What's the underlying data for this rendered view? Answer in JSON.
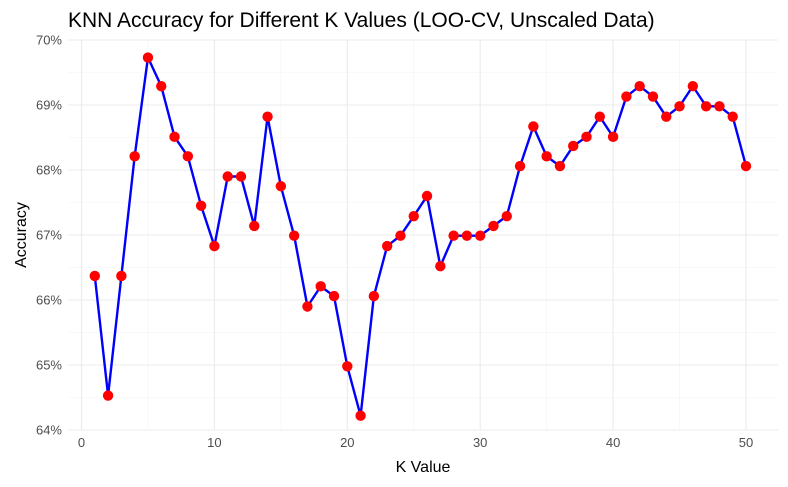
{
  "chart_data": {
    "type": "line",
    "title": "KNN Accuracy for Different K Values (LOO-CV, Unscaled Data)",
    "xlabel": "K Value",
    "ylabel": "Accuracy",
    "xlim": [
      0,
      50
    ],
    "ylim": [
      0.64,
      0.7
    ],
    "x_ticks": [
      0,
      10,
      20,
      30,
      40,
      50
    ],
    "x_tick_labels": [
      "0",
      "10",
      "20",
      "30",
      "40",
      "50"
    ],
    "y_ticks": [
      0.64,
      0.65,
      0.66,
      0.67,
      0.68,
      0.69,
      0.7
    ],
    "y_tick_labels": [
      "64%",
      "65%",
      "66%",
      "67%",
      "68%",
      "69%",
      "70%"
    ],
    "grid": true,
    "line_color": "#0000ff",
    "point_color": "#ff0000",
    "series": [
      {
        "x": [
          1,
          2,
          3,
          4,
          5,
          6,
          7,
          8,
          9,
          10,
          11,
          12,
          13,
          14,
          15,
          16,
          17,
          18,
          19,
          20,
          21,
          22,
          23,
          24,
          25,
          26,
          27,
          28,
          29,
          30,
          31,
          32,
          33,
          34,
          35,
          36,
          37,
          38,
          39,
          40,
          41,
          42,
          43,
          44,
          45,
          46,
          47,
          48,
          49,
          50
        ],
        "y": [
          0.6637,
          0.6453,
          0.6637,
          0.6821,
          0.6973,
          0.6929,
          0.6851,
          0.6821,
          0.6745,
          0.6683,
          0.679,
          0.679,
          0.6714,
          0.6882,
          0.6775,
          0.6699,
          0.659,
          0.6621,
          0.6606,
          0.6498,
          0.6422,
          0.6606,
          0.6683,
          0.6699,
          0.6729,
          0.676,
          0.6652,
          0.6699,
          0.6699,
          0.6699,
          0.6714,
          0.6729,
          0.6806,
          0.6867,
          0.6821,
          0.6806,
          0.6837,
          0.6851,
          0.6882,
          0.6851,
          0.6913,
          0.6929,
          0.6913,
          0.6882,
          0.6898,
          0.6929,
          0.6898,
          0.6898,
          0.6882,
          0.6806
        ]
      }
    ]
  }
}
